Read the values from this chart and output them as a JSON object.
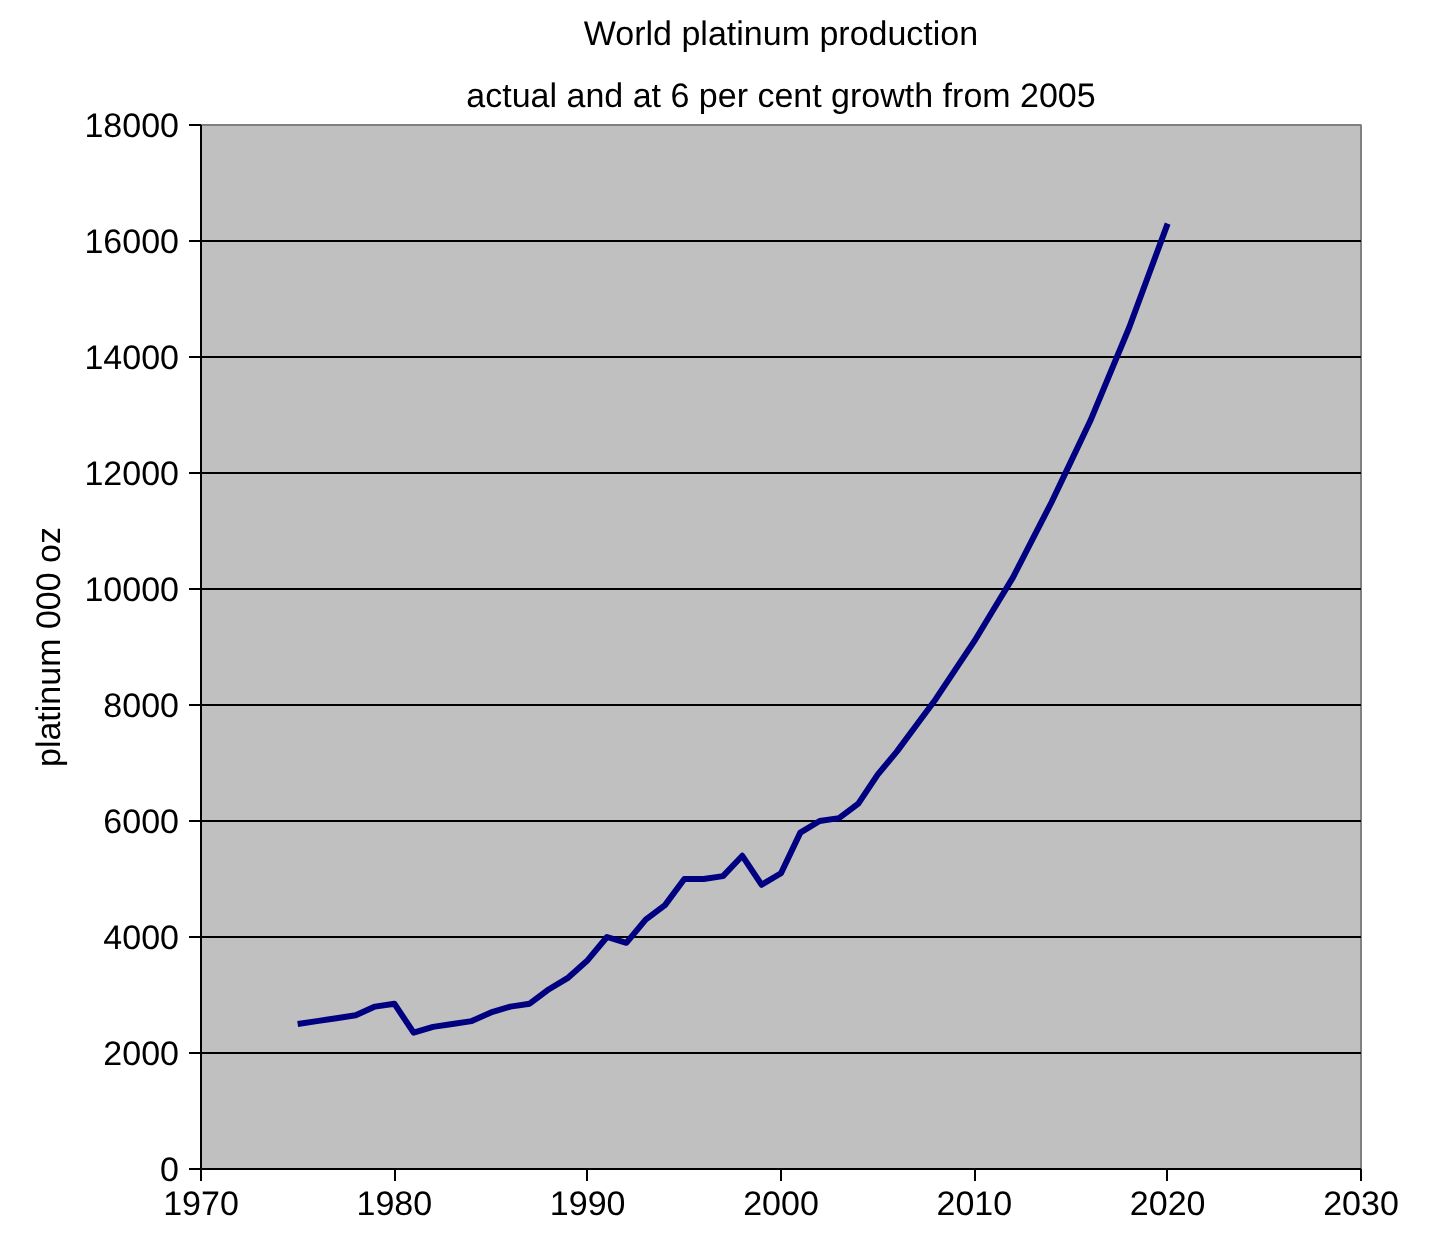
{
  "chart_data": {
    "type": "line",
    "title": "World platinum production",
    "subtitle": "actual and at 6 per cent growth from 2005",
    "ylabel": "platinum 000 oz",
    "x": [
      1975,
      1976,
      1977,
      1978,
      1979,
      1980,
      1981,
      1982,
      1983,
      1984,
      1985,
      1986,
      1987,
      1988,
      1989,
      1990,
      1991,
      1992,
      1993,
      1994,
      1995,
      1996,
      1997,
      1998,
      1999,
      2000,
      2001,
      2002,
      2003,
      2004,
      2005,
      2006,
      2007,
      2008,
      2009,
      2010,
      2011,
      2012,
      2013,
      2014,
      2015,
      2016,
      2017,
      2018,
      2019,
      2020
    ],
    "series": [
      {
        "color": "#000080",
        "values": [
          2500,
          2550,
          2600,
          2650,
          2800,
          2850,
          2350,
          2450,
          2500,
          2550,
          2700,
          2800,
          2850,
          3100,
          3300,
          3600,
          4000,
          3900,
          4300,
          4550,
          5000,
          5000,
          5050,
          5400,
          4900,
          5100,
          5800,
          6000,
          6050,
          6300,
          6800,
          7200,
          7650,
          8100,
          8600,
          9100,
          9650,
          10200,
          10850,
          11500,
          12200,
          12900,
          13700,
          14500,
          15400,
          16300
        ]
      }
    ],
    "xlim": [
      1970,
      2030
    ],
    "xticks": [
      1970,
      1980,
      1990,
      2000,
      2010,
      2020,
      2030
    ],
    "ylim": [
      0,
      18000
    ],
    "yticks": [
      0,
      2000,
      4000,
      6000,
      8000,
      10000,
      12000,
      14000,
      16000,
      18000
    ],
    "grid": "y",
    "marker": "none",
    "line_style": "solid"
  }
}
